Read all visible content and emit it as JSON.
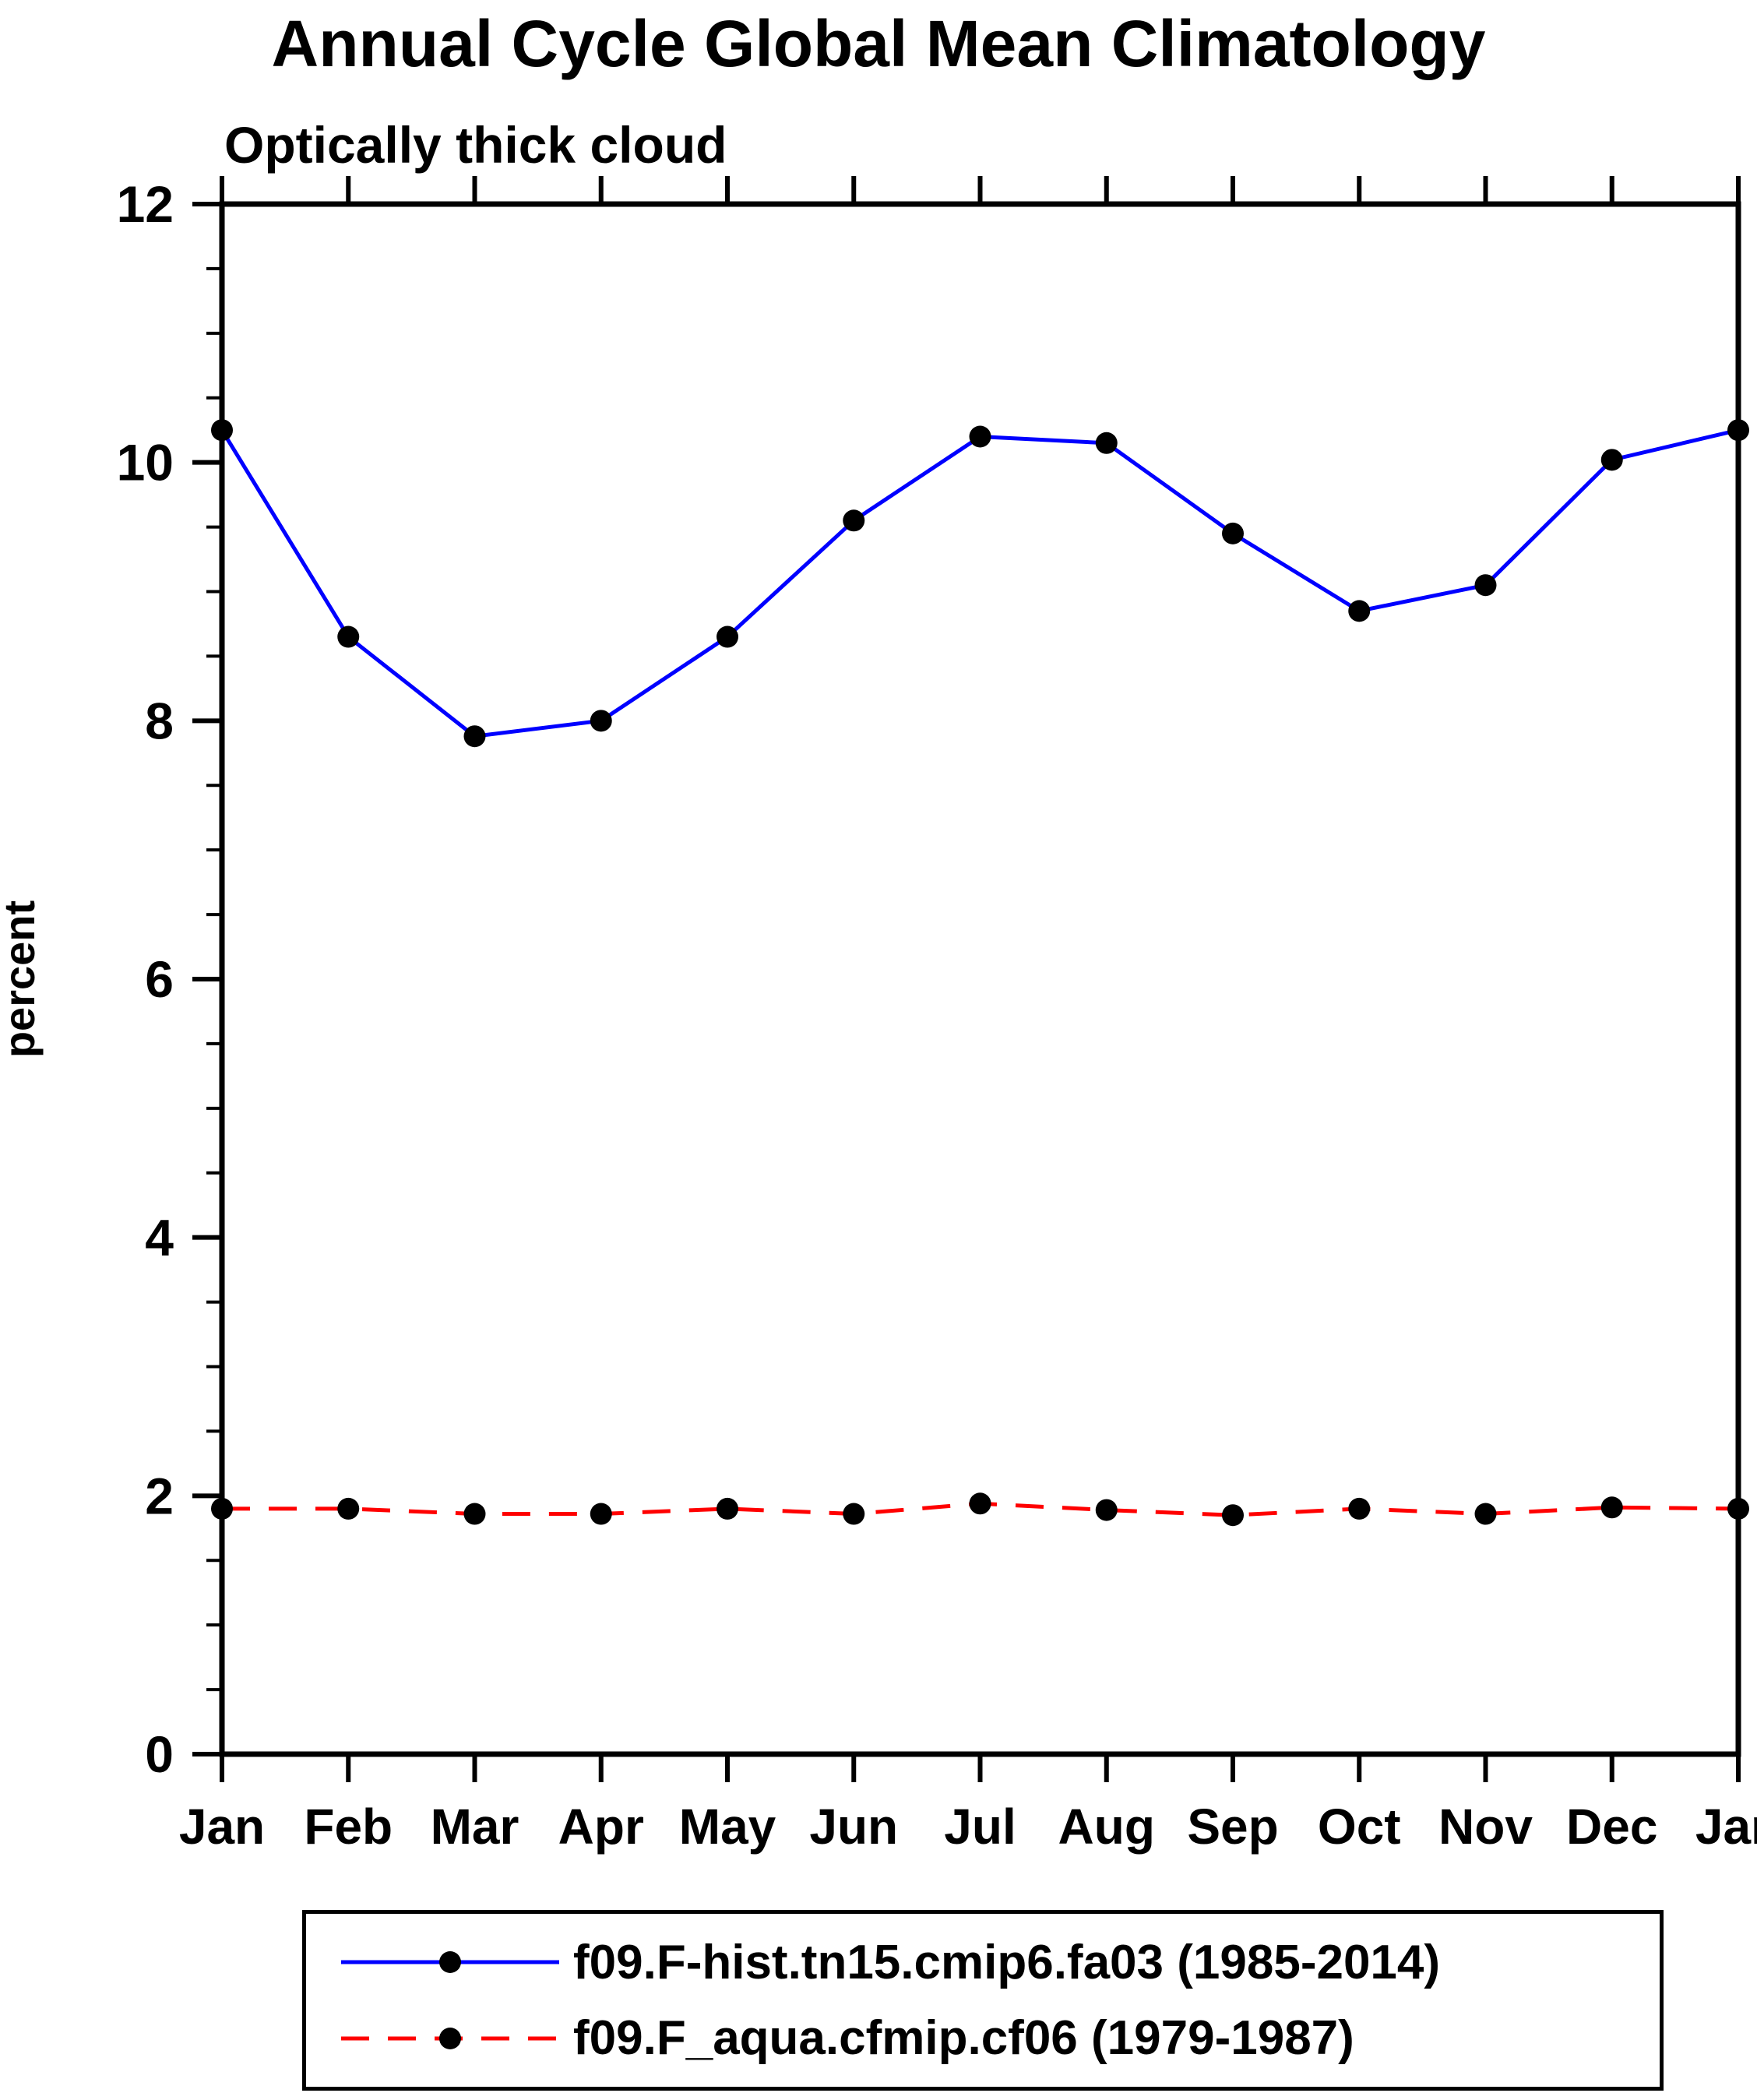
{
  "title": "Annual Cycle Global Mean Climatology",
  "subtitle": "Optically thick cloud",
  "ylabel": "percent",
  "chart_data": {
    "type": "line",
    "x_labels": [
      "Jan",
      "Feb",
      "Mar",
      "Apr",
      "May",
      "Jun",
      "Jul",
      "Aug",
      "Sep",
      "Oct",
      "Nov",
      "Dec",
      "Jan"
    ],
    "ylim": [
      0,
      12
    ],
    "yticks": [
      0,
      2,
      4,
      6,
      8,
      10,
      12
    ],
    "minor_tick_step": 0.5,
    "grid": false,
    "legend_position": "bottom",
    "axis_color": "#000000",
    "marker_color": "#000000",
    "series": [
      {
        "name": "f09.F-hist.tn15.cmip6.fa03 (1985-2014)",
        "color": "#0000ff",
        "style": "solid",
        "marker": "circle",
        "values": [
          10.25,
          8.65,
          7.88,
          8.0,
          8.65,
          9.55,
          10.2,
          10.15,
          9.45,
          8.85,
          9.05,
          10.02,
          10.25
        ]
      },
      {
        "name": "f09.F_aqua.cfmip.cf06 (1979-1987)",
        "color": "#ff0000",
        "style": "dashed",
        "marker": "circle",
        "values": [
          1.9,
          1.9,
          1.86,
          1.86,
          1.9,
          1.86,
          1.94,
          1.89,
          1.85,
          1.9,
          1.86,
          1.91,
          1.9
        ]
      }
    ]
  }
}
